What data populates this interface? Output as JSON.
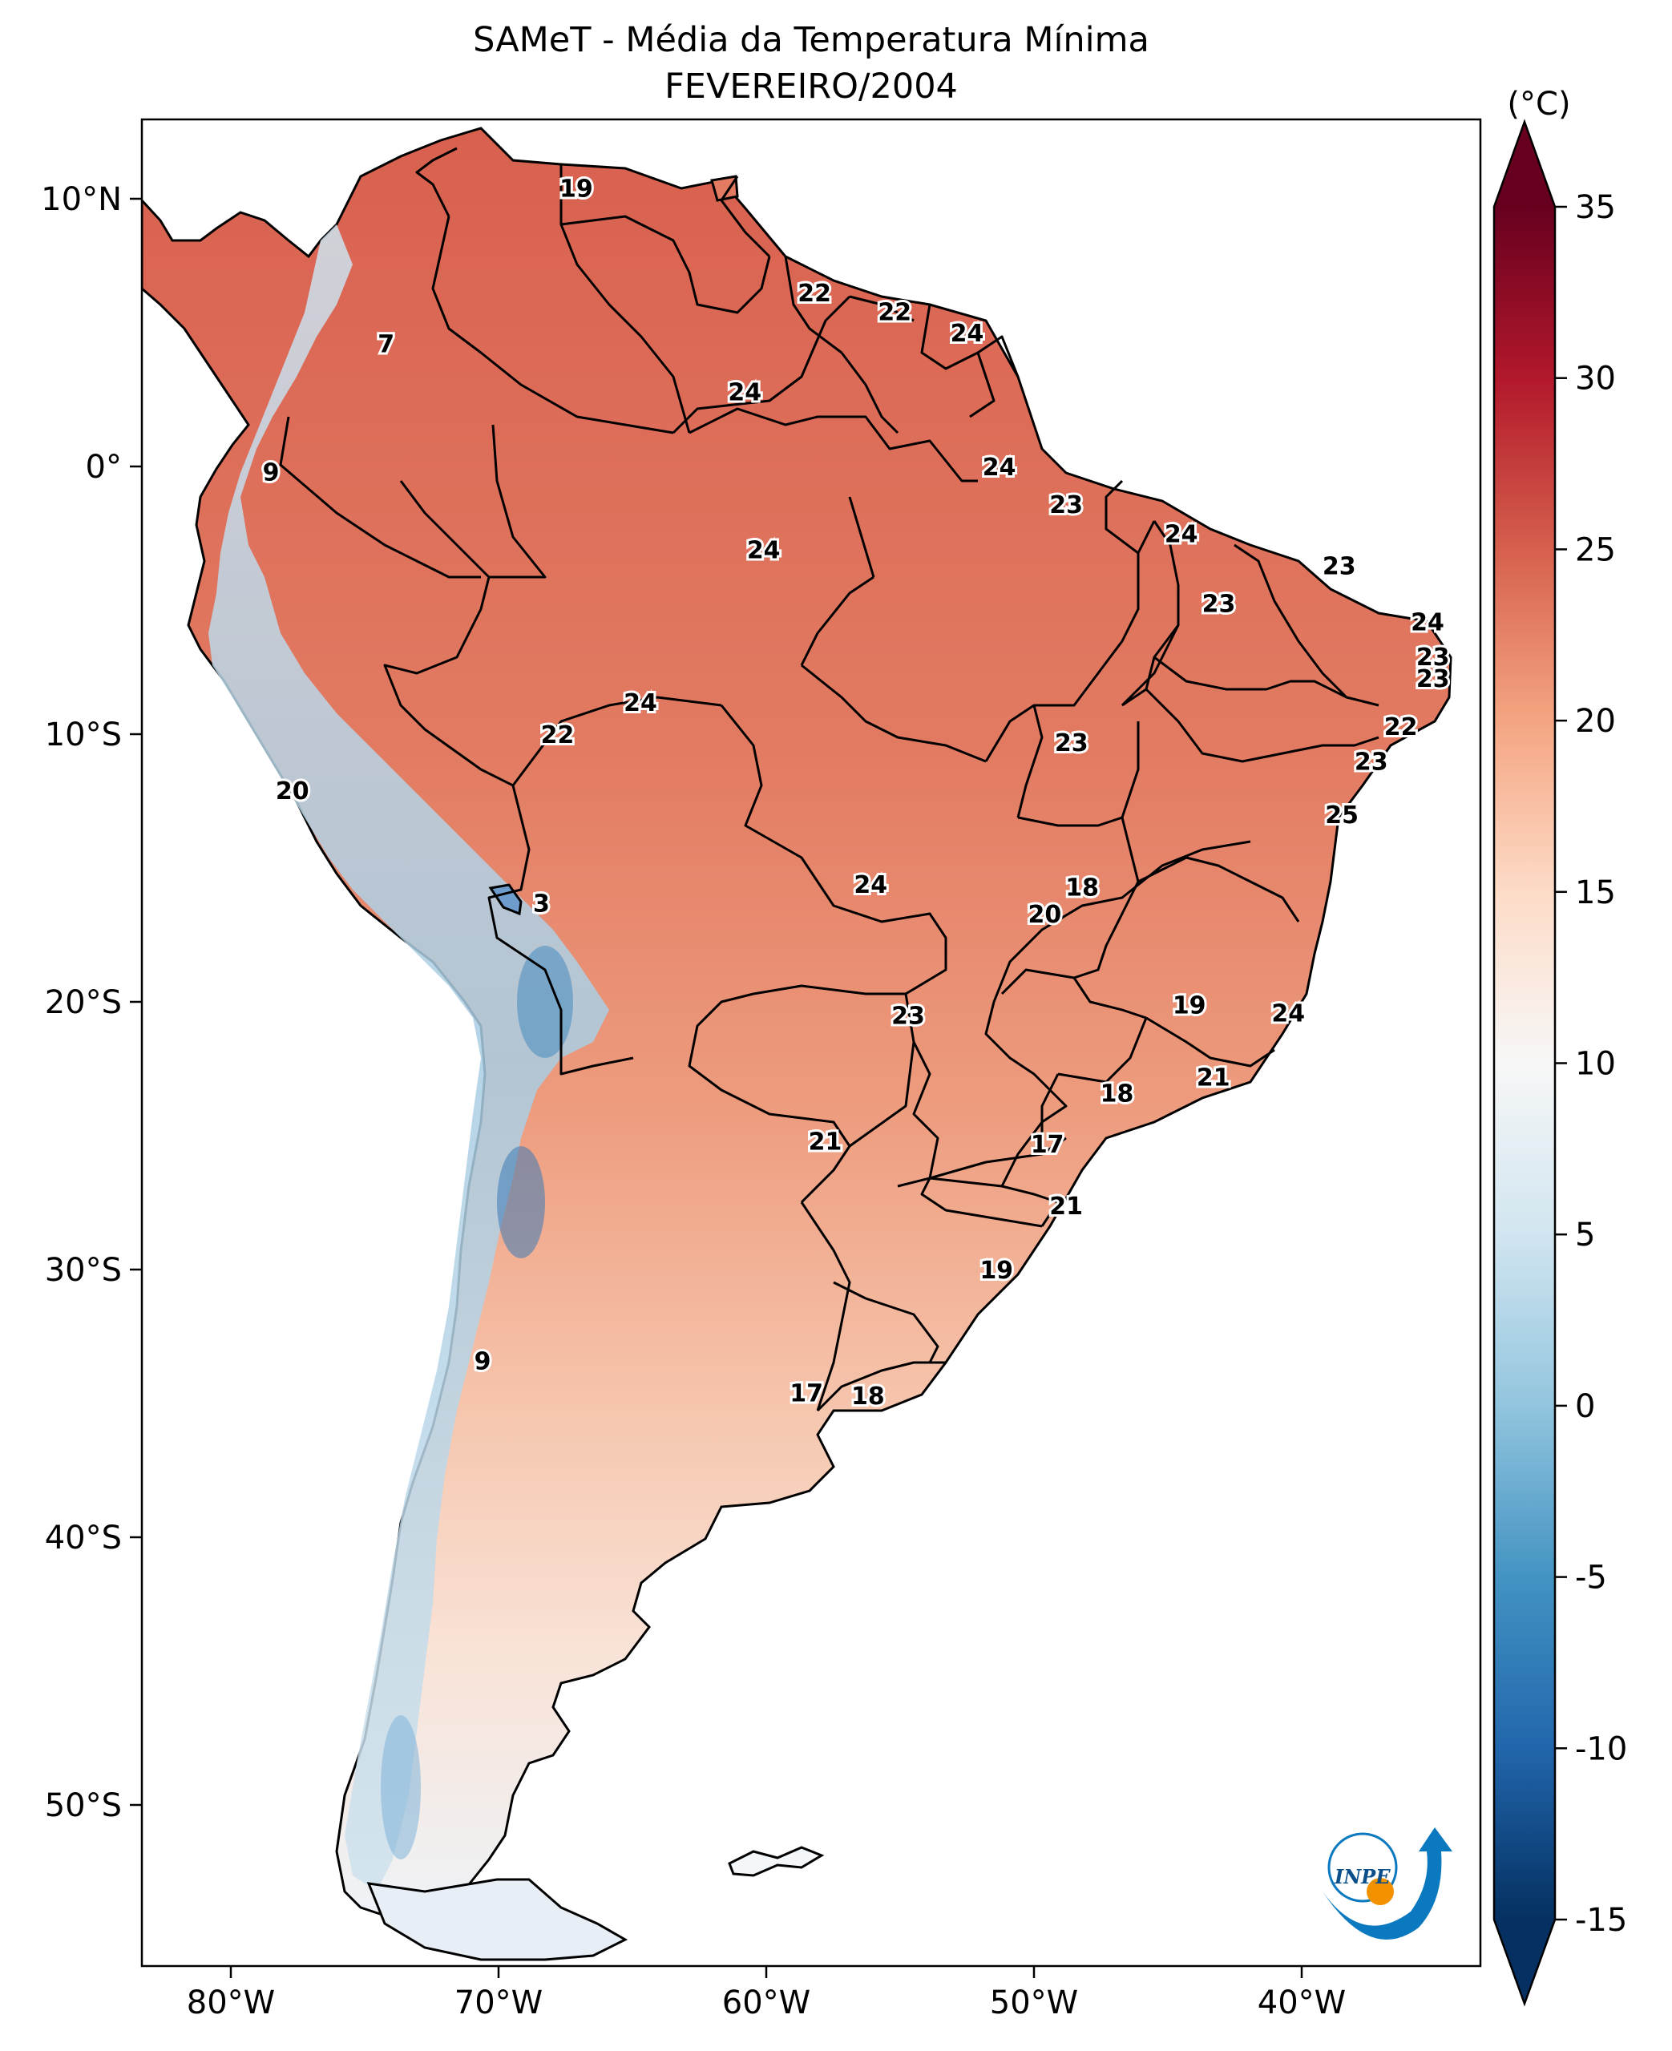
{
  "title": "SAMeT - Média da Temperatura Mínima",
  "subtitle": "FEVEREIRO/2004",
  "colorbar": {
    "unit": "(°C)",
    "ticks": [
      "35",
      "30",
      "25",
      "20",
      "15",
      "10",
      "5",
      "0",
      "-5",
      "-10",
      "-15"
    ],
    "min": -15,
    "max": 35,
    "extend": "both",
    "colormap": [
      "#053061",
      "#2166ac",
      "#4393c3",
      "#92c5de",
      "#d1e5f0",
      "#f7f7f7",
      "#fddbc7",
      "#f4a582",
      "#d6604d",
      "#b2182b",
      "#67001f"
    ]
  },
  "axes": {
    "lon_labels": [
      "80°W",
      "70°W",
      "60°W",
      "50°W",
      "40°W"
    ],
    "lat_labels": [
      "10°N",
      "0°",
      "10°S",
      "20°S",
      "30°S",
      "40°S",
      "50°S"
    ]
  },
  "logo": {
    "text": "INPE"
  },
  "temperature_labels": [
    {
      "v": "19",
      "lon": -67.1,
      "lat": 10.4
    },
    {
      "v": "22",
      "lon": -58.2,
      "lat": 6.5
    },
    {
      "v": "22",
      "lon": -55.2,
      "lat": 5.8
    },
    {
      "v": "24",
      "lon": -52.5,
      "lat": 5.0
    },
    {
      "v": "7",
      "lon": -74.2,
      "lat": 4.6
    },
    {
      "v": "24",
      "lon": -60.8,
      "lat": 2.8
    },
    {
      "v": "9",
      "lon": -78.5,
      "lat": -0.2
    },
    {
      "v": "24",
      "lon": -51.3,
      "lat": 0.0
    },
    {
      "v": "23",
      "lon": -48.8,
      "lat": -1.4
    },
    {
      "v": "24",
      "lon": -60.1,
      "lat": -3.1
    },
    {
      "v": "24",
      "lon": -44.5,
      "lat": -2.5
    },
    {
      "v": "23",
      "lon": -38.6,
      "lat": -3.7
    },
    {
      "v": "23",
      "lon": -43.1,
      "lat": -5.1
    },
    {
      "v": "24",
      "lon": -35.3,
      "lat": -5.8
    },
    {
      "v": "23",
      "lon": -35.1,
      "lat": -7.1
    },
    {
      "v": "23",
      "lon": -35.1,
      "lat": -7.9
    },
    {
      "v": "24",
      "lon": -64.7,
      "lat": -8.8
    },
    {
      "v": "22",
      "lon": -67.8,
      "lat": -10.0
    },
    {
      "v": "22",
      "lon": -36.3,
      "lat": -9.7
    },
    {
      "v": "23",
      "lon": -48.6,
      "lat": -10.3
    },
    {
      "v": "23",
      "lon": -37.4,
      "lat": -11.0
    },
    {
      "v": "20",
      "lon": -77.7,
      "lat": -12.1
    },
    {
      "v": "25",
      "lon": -38.5,
      "lat": -13.0
    },
    {
      "v": "24",
      "lon": -56.1,
      "lat": -15.6
    },
    {
      "v": "18",
      "lon": -48.2,
      "lat": -15.7
    },
    {
      "v": "20",
      "lon": -49.6,
      "lat": -16.7
    },
    {
      "v": "3",
      "lon": -68.4,
      "lat": -16.3
    },
    {
      "v": "19",
      "lon": -44.2,
      "lat": -20.1
    },
    {
      "v": "24",
      "lon": -40.5,
      "lat": -20.4
    },
    {
      "v": "23",
      "lon": -54.7,
      "lat": -20.5
    },
    {
      "v": "21",
      "lon": -43.3,
      "lat": -22.8
    },
    {
      "v": "18",
      "lon": -46.9,
      "lat": -23.4
    },
    {
      "v": "21",
      "lon": -57.8,
      "lat": -25.2
    },
    {
      "v": "17",
      "lon": -49.5,
      "lat": -25.3
    },
    {
      "v": "21",
      "lon": -48.8,
      "lat": -27.6
    },
    {
      "v": "19",
      "lon": -51.4,
      "lat": -30.0
    },
    {
      "v": "9",
      "lon": -70.6,
      "lat": -33.4
    },
    {
      "v": "17",
      "lon": -58.5,
      "lat": -34.6
    },
    {
      "v": "18",
      "lon": -56.2,
      "lat": -34.7
    }
  ]
}
